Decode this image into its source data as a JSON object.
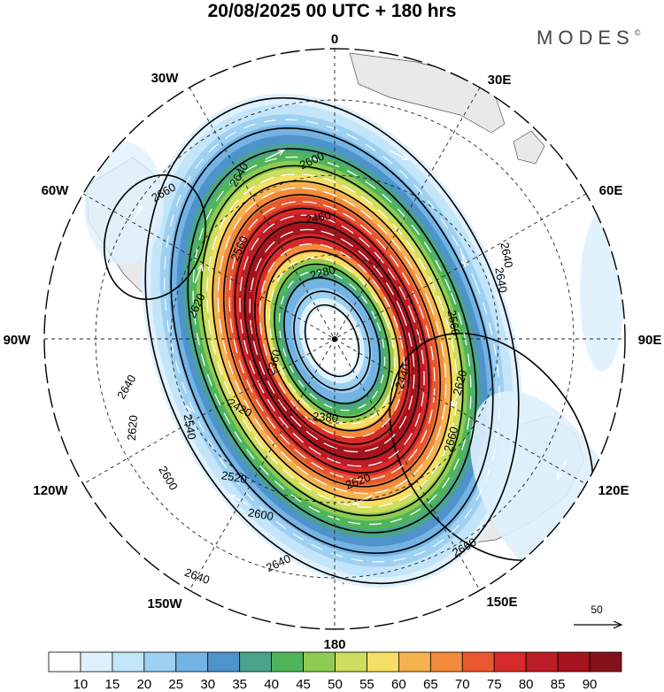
{
  "header": {
    "title": "20/08/2025  00 UTC  + 180 hrs",
    "brand": "MODES",
    "brand_mark": "©"
  },
  "map": {
    "projection": "south polar stereographic",
    "longitude_labels": {
      "lon_0": "0",
      "lon_30e": "30E",
      "lon_60e": "60E",
      "lon_90e": "90E",
      "lon_120e": "120E",
      "lon_150e": "150E",
      "lon_180": "180",
      "lon_150w": "150W",
      "lon_120w": "120W",
      "lon_90w": "90W",
      "lon_60w": "60W",
      "lon_30w": "30W"
    },
    "contour_labels": {
      "c1": "2660",
      "c2": "2640",
      "c3": "2600",
      "c4": "2640",
      "c5": "2620",
      "c6": "2560",
      "c7": "2460",
      "c8": "2280",
      "c9": "2640",
      "c10": "2560",
      "c11": "2360",
      "c12": "2640",
      "c13": "2620",
      "c14": "2440",
      "c15": "2420",
      "c16": "2380",
      "c17": "2620",
      "c18": "2660",
      "c19": "2540",
      "c20": "2520",
      "c21": "2600",
      "c22": "2620",
      "c23": "2600",
      "c24": "2660",
      "c25": "2640",
      "c26": "2640"
    },
    "reference_vector_label": "50"
  },
  "colorbar": {
    "ticks": [
      "10",
      "15",
      "20",
      "25",
      "30",
      "35",
      "40",
      "45",
      "50",
      "55",
      "60",
      "65",
      "70",
      "75",
      "80",
      "85",
      "90"
    ],
    "colors": [
      "#ffffff",
      "#dff1fc",
      "#c3e5f9",
      "#9dd0f1",
      "#74b4e4",
      "#4f93cb",
      "#4aa48c",
      "#4fb55a",
      "#8fcb50",
      "#cddd5e",
      "#f6df64",
      "#f6b250",
      "#f38a3c",
      "#e8582f",
      "#d72a2a",
      "#bd1d24",
      "#a5141d",
      "#85121a"
    ]
  }
}
